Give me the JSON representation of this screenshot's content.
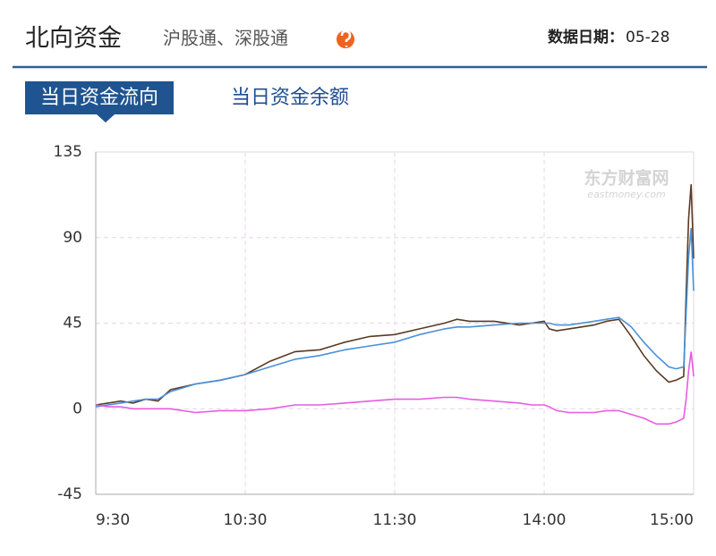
{
  "header": {
    "title": "北向资金",
    "subtitle": "沪股通、深股通",
    "date_label": "数据日期：",
    "date": "05-28"
  },
  "tabs": [
    "当日资金流向",
    "当日资金余额"
  ],
  "chart_data": {
    "type": "line",
    "watermark": "东方财富网",
    "watermark_sub": "eastmoney.com",
    "x": [
      0,
      5,
      10,
      15,
      20,
      25,
      30,
      40,
      50,
      60,
      70,
      80,
      90,
      100,
      110,
      120,
      130,
      140,
      145,
      150,
      160,
      170,
      175,
      180,
      182,
      185,
      190,
      200,
      205,
      210,
      215,
      220,
      225,
      230,
      233,
      236,
      237,
      238,
      239,
      240
    ],
    "xlim": [
      0,
      240
    ],
    "xticks": [
      {
        "value": 0,
        "label": "9:30"
      },
      {
        "value": 60,
        "label": "10:30"
      },
      {
        "value": 120,
        "label": "11:30"
      },
      {
        "value": 180,
        "label": "14:00"
      },
      {
        "value": 240,
        "label": "15:00"
      }
    ],
    "ylim": [
      -45,
      135
    ],
    "yticks": [
      135,
      90,
      45,
      0,
      -45
    ],
    "grid": true,
    "series": [
      {
        "color": "#5a3a22",
        "values": [
          2,
          3,
          4,
          3,
          5,
          4,
          10,
          13,
          15,
          18,
          25,
          30,
          31,
          35,
          38,
          39,
          42,
          45,
          47,
          46,
          46,
          44,
          45,
          46,
          42,
          41,
          42,
          44,
          46,
          47,
          38,
          28,
          20,
          14,
          15,
          17,
          60,
          100,
          118,
          79
        ]
      },
      {
        "color": "#4a90d9",
        "values": [
          1,
          2,
          3,
          4,
          5,
          5,
          9,
          13,
          15,
          18,
          22,
          26,
          28,
          31,
          33,
          35,
          39,
          42,
          43,
          43,
          44,
          45,
          45,
          45,
          45,
          44,
          44,
          46,
          47,
          48,
          43,
          35,
          28,
          22,
          21,
          22,
          50,
          80,
          95,
          62
        ]
      },
      {
        "color": "#e75ce0",
        "values": [
          2,
          1,
          1,
          0,
          0,
          0,
          0,
          -2,
          -1,
          -1,
          0,
          2,
          2,
          3,
          4,
          5,
          5,
          6,
          6,
          5,
          4,
          3,
          2,
          2,
          1,
          -1,
          -2,
          -2,
          -1,
          -1,
          -3,
          -5,
          -8,
          -8,
          -7,
          -5,
          5,
          20,
          30,
          17
        ]
      }
    ]
  }
}
